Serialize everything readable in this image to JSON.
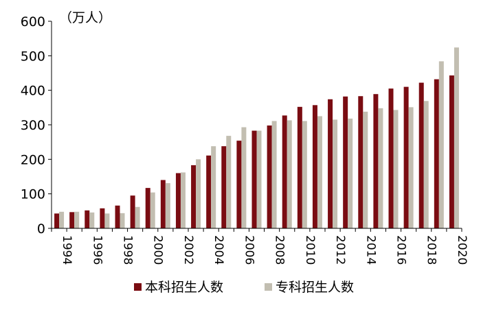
{
  "chart_data": {
    "type": "bar",
    "title": "",
    "xlabel": "",
    "ylabel": "",
    "unit_label": "（万人）",
    "ylim": [
      0,
      600
    ],
    "y_ticks": [
      0,
      100,
      200,
      300,
      400,
      500,
      600
    ],
    "grid": false,
    "legend_position": "bottom",
    "categories": [
      "1994",
      "1995",
      "1996",
      "1997",
      "1998",
      "1999",
      "2000",
      "2001",
      "2002",
      "2003",
      "2004",
      "2005",
      "2006",
      "2007",
      "2008",
      "2009",
      "2010",
      "2011",
      "2012",
      "2013",
      "2014",
      "2015",
      "2016",
      "2017",
      "2018",
      "2019",
      "2020"
    ],
    "x_tick_labels": [
      "1994",
      "1996",
      "1998",
      "2000",
      "2002",
      "2004",
      "2006",
      "2008",
      "2010",
      "2012",
      "2014",
      "2016",
      "2018",
      "2020"
    ],
    "series": [
      {
        "name": "本科招生人数",
        "color": "#7a0c12",
        "values": [
          43,
          47,
          52,
          58,
          66,
          95,
          117,
          140,
          160,
          183,
          211,
          238,
          254,
          283,
          298,
          327,
          352,
          357,
          374,
          382,
          383,
          389,
          405,
          410,
          422,
          432,
          443
        ]
      },
      {
        "name": "专科招生人数",
        "color": "#c2beb1",
        "values": [
          48,
          48,
          46,
          43,
          44,
          62,
          104,
          131,
          162,
          200,
          238,
          268,
          293,
          283,
          311,
          313,
          311,
          325,
          315,
          318,
          338,
          348,
          343,
          351,
          369,
          484,
          524
        ]
      }
    ]
  }
}
